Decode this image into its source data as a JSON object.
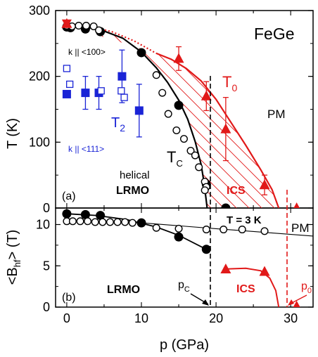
{
  "colors": {
    "black": "#000000",
    "red": "#e11919",
    "blue": "#1a24d6"
  },
  "chart_data": [
    {
      "type": "scatter",
      "panel_label": "(a)",
      "title": "FeGe",
      "xlim": [
        -1.5,
        33
      ],
      "ylim": [
        0,
        300
      ],
      "yticks": [
        0,
        100,
        200,
        300
      ],
      "ylabel_base": "T (K)",
      "series": [
        {
          "name": "T_C",
          "marker": "filled-circle",
          "color": "black",
          "points": [
            [
              0,
              275
            ],
            [
              0.5,
              274
            ],
            [
              2.5,
              272
            ],
            [
              4.5,
              268
            ],
            [
              10,
              236
            ],
            [
              15,
              156
            ],
            [
              18.7,
              36
            ],
            [
              21.3,
              0
            ]
          ]
        },
        {
          "name": "T_C open",
          "marker": "open-circle",
          "color": "black",
          "points": [
            [
              0,
              277
            ],
            [
              0.7,
              276
            ],
            [
              1.6,
              277
            ],
            [
              2.6,
              277
            ],
            [
              3.6,
              276
            ],
            [
              4.3,
              270
            ],
            [
              12,
              202
            ],
            [
              12.8,
              175
            ],
            [
              13.6,
              143
            ],
            [
              14.7,
              118
            ],
            [
              15.7,
              105
            ],
            [
              16.6,
              87
            ],
            [
              17.2,
              80
            ],
            [
              17.7,
              62
            ],
            [
              18.5,
              40
            ],
            [
              18.7,
              32
            ],
            [
              18.5,
              27
            ]
          ]
        },
        {
          "name": "T_0",
          "marker": "filled-triangle",
          "color": "red",
          "points": [
            [
              0,
              280
            ],
            [
              15,
              227
            ],
            [
              18.7,
              170
            ],
            [
              21.3,
              120
            ],
            [
              26.5,
              35
            ],
            [
              30.8,
              0
            ]
          ],
          "err": [
            0,
            18,
            22,
            48,
            15,
            0
          ]
        },
        {
          "name": "T_2",
          "marker": "filled-square",
          "color": "blue",
          "points": [
            [
              0,
              173
            ],
            [
              2.5,
              175
            ],
            [
              4.3,
              175
            ],
            [
              7.4,
              200
            ],
            [
              9.7,
              148
            ]
          ],
          "err": [
            0,
            25,
            25,
            40,
            40
          ]
        },
        {
          "name": "T_2 open",
          "marker": "open-square",
          "color": "blue",
          "points": [
            [
              0,
              212
            ],
            [
              0.4,
              188
            ],
            [
              4.6,
              178
            ],
            [
              7.3,
              178
            ],
            [
              7.7,
              168
            ]
          ]
        }
      ],
      "annotations": {
        "k100": "k || <100>",
        "k111": "k || <111>",
        "t2": "T",
        "t2_sub": "2",
        "tc": "T",
        "tc_sub": "C",
        "t0": "T",
        "t0_sub": "0",
        "pm": "PM",
        "helical": "helical",
        "lrmo": "LRMO",
        "ics": "ICS"
      }
    },
    {
      "type": "scatter",
      "panel_label": "(b)",
      "xlim": [
        -1.5,
        33
      ],
      "ylim": [
        0,
        12
      ],
      "yticks": [
        0,
        5,
        10
      ],
      "xticks": [
        0,
        10,
        20,
        30
      ],
      "xlabel": "p (GPa)",
      "ylabel_base": "<B",
      "ylabel_sub": "hf",
      "ylabel_end": "> (T)",
      "series": [
        {
          "name": "Bhf filled",
          "marker": "filled-circle",
          "color": "black",
          "points": [
            [
              0,
              11.3
            ],
            [
              2.5,
              11.2
            ],
            [
              4.5,
              11.1
            ],
            [
              10,
              10.2
            ],
            [
              15,
              8.5
            ],
            [
              18.7,
              7
            ]
          ]
        },
        {
          "name": "Bhf open",
          "marker": "open-circle",
          "color": "black",
          "points": [
            [
              0,
              10.4
            ],
            [
              0.8,
              10.4
            ],
            [
              1.8,
              10.4
            ],
            [
              2.8,
              10.4
            ],
            [
              3.8,
              10.3
            ],
            [
              4.8,
              10.3
            ],
            [
              5.8,
              10.3
            ],
            [
              6.8,
              10.3
            ],
            [
              7.8,
              10.3
            ],
            [
              8.8,
              10.2
            ],
            [
              12,
              9.6
            ],
            [
              15,
              9.5
            ],
            [
              18.7,
              9.4
            ],
            [
              21,
              9.4
            ],
            [
              23.5,
              9.4
            ],
            [
              26.5,
              9.2
            ]
          ]
        },
        {
          "name": "Bhf ICS",
          "marker": "filled-triangle",
          "color": "red",
          "points": [
            [
              21.3,
              4.6
            ],
            [
              26.5,
              4.3
            ],
            [
              30.8,
              0.1
            ]
          ]
        }
      ],
      "annotations": {
        "temp": "T = 3 K",
        "pm": "PM",
        "lrmo": "LRMO",
        "ics": "ICS",
        "pc": "p",
        "pc_sub": "C",
        "p0": "p",
        "p0_sub": "0"
      }
    }
  ]
}
